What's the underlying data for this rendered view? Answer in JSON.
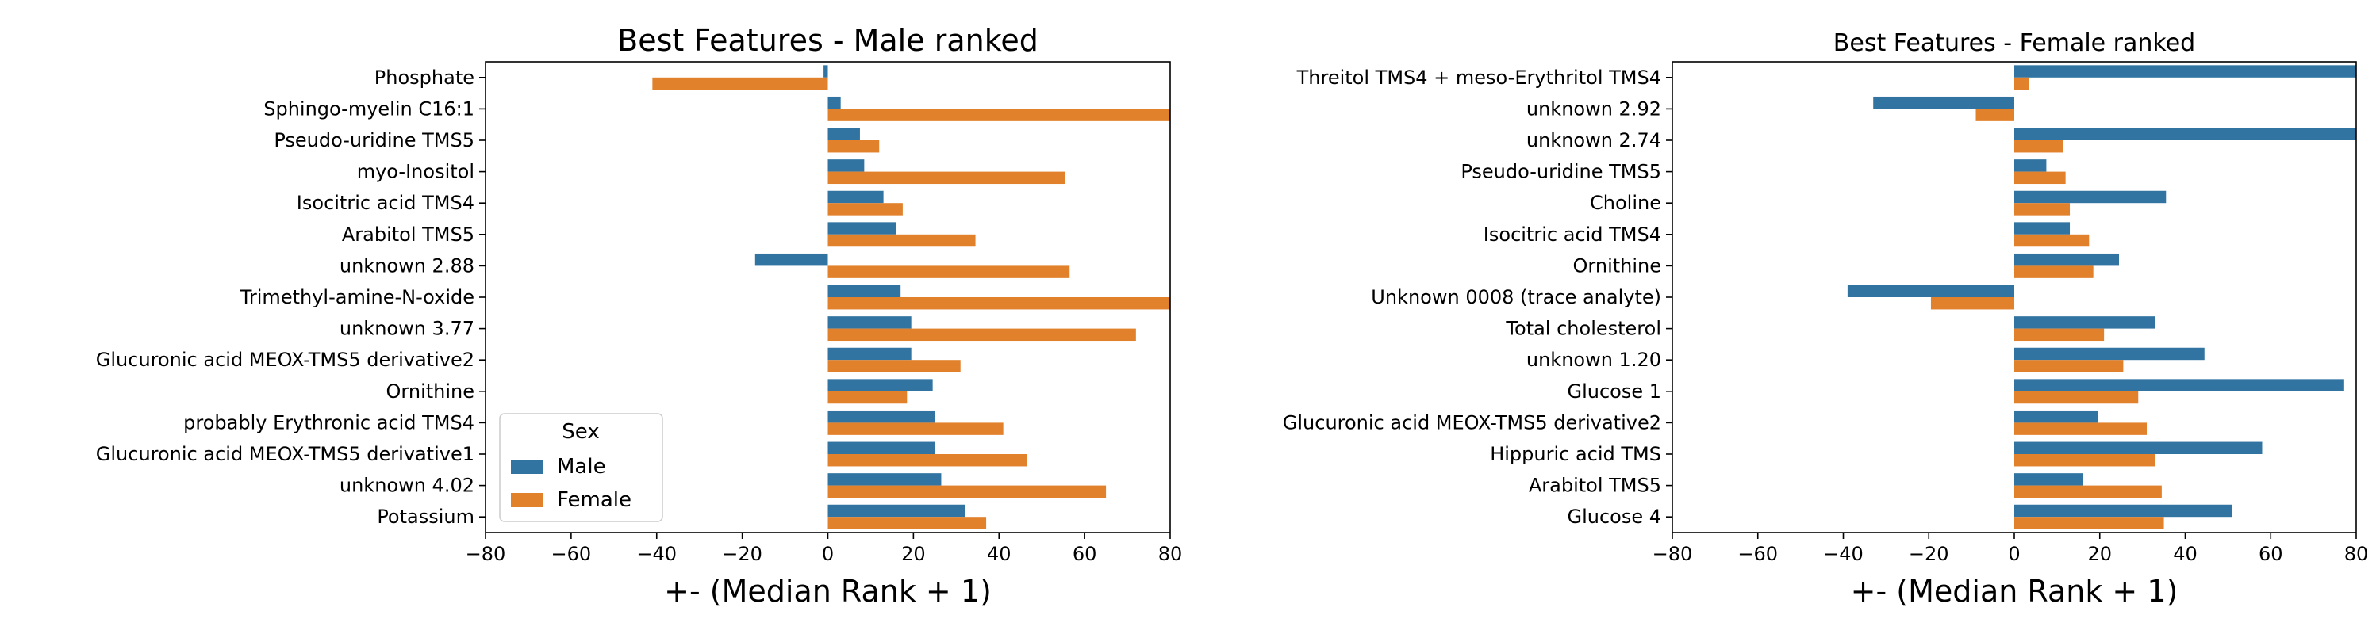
{
  "chart_data": [
    {
      "type": "bar",
      "orientation": "horizontal",
      "title": "Best Features - Male ranked",
      "xlabel": "+- (Median Rank + 1)",
      "ylabel": "",
      "xlim": [
        -80,
        80
      ],
      "xticks": [
        "−80",
        "−60",
        "−40",
        "−20",
        "0",
        "20",
        "40",
        "60",
        "80"
      ],
      "legend": {
        "title": "Sex",
        "placement": "lower-left",
        "entries": [
          "Male",
          "Female"
        ]
      },
      "categories": [
        "Phosphate",
        "Sphingo-myelin C16:1",
        "Pseudo-uridine TMS5",
        "myo-Inositol",
        "Isocitric acid TMS4",
        "Arabitol TMS5",
        "unknown 2.88",
        "Trimethyl-amine-N-oxide",
        "unknown 3.77",
        "Glucuronic acid MEOX-TMS5 derivative2",
        "Ornithine",
        "probably Erythronic acid TMS4",
        "Glucuronic acid MEOX-TMS5 derivative1",
        "unknown 4.02",
        "Potassium"
      ],
      "series": [
        {
          "name": "Male",
          "color": "#3274a1",
          "values": [
            -1,
            3,
            7.5,
            8.5,
            13,
            16,
            -17,
            17,
            19.5,
            19.5,
            24.5,
            25,
            25,
            26.5,
            32
          ]
        },
        {
          "name": "Female",
          "color": "#e1812c",
          "values": [
            -41,
            80,
            12,
            55.5,
            17.5,
            34.5,
            56.5,
            80,
            72,
            31,
            18.5,
            41,
            46.5,
            65,
            37
          ]
        }
      ]
    },
    {
      "type": "bar",
      "orientation": "horizontal",
      "title": "Best Features - Female ranked",
      "xlabel": "+- (Median Rank + 1)",
      "ylabel": "",
      "xlim": [
        -80,
        80
      ],
      "xticks": [
        "−80",
        "−60",
        "−40",
        "−20",
        "0",
        "20",
        "40",
        "60",
        "80"
      ],
      "categories": [
        "Threitol TMS4 + meso-Erythritol TMS4",
        "unknown 2.92",
        "unknown 2.74",
        "Pseudo-uridine TMS5",
        "Choline",
        "Isocitric acid TMS4",
        "Ornithine",
        "Unknown 0008 (trace analyte)",
        "Total cholesterol",
        "unknown 1.20",
        "Glucose 1",
        "Glucuronic acid MEOX-TMS5 derivative2",
        "Hippuric acid TMS",
        "Arabitol TMS5",
        "Glucose 4"
      ],
      "series": [
        {
          "name": "Male",
          "color": "#3274a1",
          "values": [
            80,
            -33,
            80,
            7.5,
            35.5,
            13,
            24.5,
            -39,
            33,
            44.5,
            77,
            19.5,
            58,
            16,
            51
          ]
        },
        {
          "name": "Female",
          "color": "#e1812c",
          "values": [
            3.5,
            -9,
            11.5,
            12,
            13,
            17.5,
            18.5,
            -19.5,
            21,
            25.5,
            29,
            31,
            33,
            34.5,
            35
          ]
        }
      ]
    }
  ]
}
